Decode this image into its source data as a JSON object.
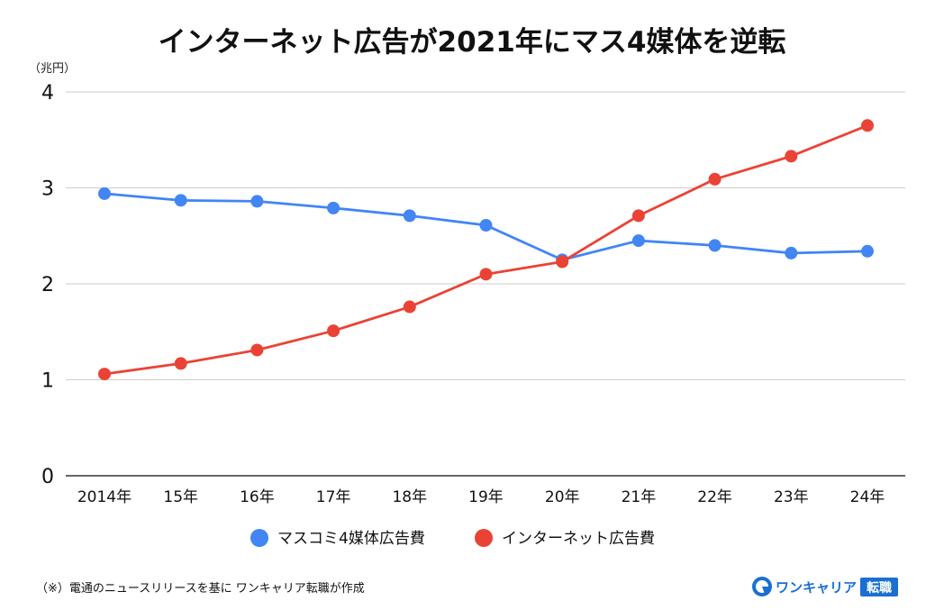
{
  "chart_data": {
    "type": "line",
    "title": "インターネット広告が2021年にマス4媒体を逆転",
    "unit_label": "（兆円）",
    "categories": [
      "2014年",
      "15年",
      "16年",
      "17年",
      "18年",
      "19年",
      "20年",
      "21年",
      "22年",
      "23年",
      "24年"
    ],
    "yticks": [
      0,
      1,
      2,
      3,
      4
    ],
    "ylim": [
      0,
      4
    ],
    "grid": true,
    "legend_position": "bottom",
    "series": [
      {
        "name": "マスコミ4媒体広告費",
        "color": "#4285F4",
        "values": [
          2.94,
          2.87,
          2.86,
          2.79,
          2.71,
          2.61,
          2.25,
          2.45,
          2.4,
          2.32,
          2.34
        ]
      },
      {
        "name": "インターネット広告費",
        "color": "#EA4335",
        "values": [
          1.06,
          1.17,
          1.31,
          1.51,
          1.76,
          2.1,
          2.23,
          2.71,
          3.09,
          3.33,
          3.65
        ]
      }
    ]
  },
  "footnote": "（※）電通のニュースリリースを基に ワンキャリア転職が作成",
  "brand": {
    "name": "ワンキャリア",
    "badge": "転職",
    "icon": "onecareer-logo-icon",
    "color": "#1a6fd1"
  }
}
